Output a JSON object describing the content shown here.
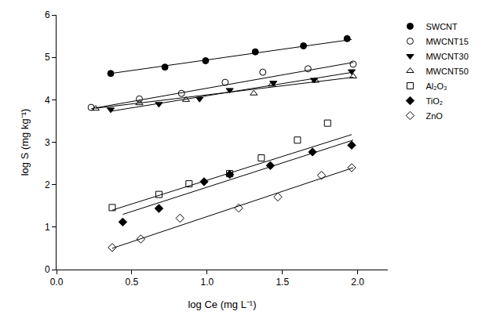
{
  "chart_data": {
    "type": "scatter",
    "xlabel": "log Ce (mg L⁻¹)",
    "ylabel": "log S (mg kg⁻¹)",
    "xlim": [
      0,
      2.2
    ],
    "ylim": [
      0,
      6
    ],
    "xticks": [
      {
        "value": 0,
        "label": "0.0"
      },
      {
        "value": 0.5,
        "label": "0.5"
      },
      {
        "value": 1,
        "label": "1.0"
      },
      {
        "value": 1.5,
        "label": "1.5"
      },
      {
        "value": 2,
        "label": "2.0"
      }
    ],
    "yticks": [
      0,
      1,
      2,
      3,
      4,
      5,
      6
    ],
    "grid": false,
    "legend": "right",
    "series": [
      {
        "name": "SWCNT",
        "color": "#000000",
        "marker": "circle",
        "x": [
          0.36,
          0.72,
          0.99,
          1.32,
          1.64,
          1.93
        ],
        "values": [
          4.62,
          4.77,
          4.92,
          5.13,
          5.27,
          5.44
        ],
        "trend": {
          "x": [
            0.36,
            1.96
          ],
          "values": [
            4.62,
            5.42
          ]
        }
      },
      {
        "name": "MWCNT15",
        "color": "#000000",
        "marker": "circle-open",
        "x": [
          0.23,
          0.55,
          0.83,
          1.12,
          1.37,
          1.67,
          1.97
        ],
        "values": [
          3.82,
          4.02,
          4.15,
          4.41,
          4.65,
          4.73,
          4.84
        ],
        "trend": {
          "x": [
            0.23,
            1.97
          ],
          "values": [
            3.79,
            4.88
          ]
        }
      },
      {
        "name": "MWCNT30",
        "color": "#000000",
        "marker": "triangle-down",
        "x": [
          0.36,
          0.68,
          0.95,
          1.15,
          1.44,
          1.71,
          1.96
        ],
        "values": [
          3.77,
          3.9,
          4.02,
          4.23,
          4.4,
          4.47,
          4.67
        ],
        "trend": {
          "x": [
            0.36,
            1.97
          ],
          "values": [
            3.73,
            4.65
          ]
        }
      },
      {
        "name": "MWCNT50",
        "color": "#000000",
        "marker": "triangle-up-open",
        "x": [
          0.26,
          0.55,
          0.86,
          1.31,
          1.43,
          1.72,
          1.97
        ],
        "values": [
          3.79,
          3.92,
          4.0,
          4.15,
          4.36,
          4.45,
          4.55
        ],
        "trend": {
          "x": [
            0.26,
            1.97
          ],
          "values": [
            3.8,
            4.53
          ]
        }
      },
      {
        "name": "Al₂O₃",
        "color": "#000000",
        "marker": "square-open",
        "x": [
          0.37,
          0.68,
          0.88,
          1.15,
          1.36,
          1.6,
          1.8
        ],
        "values": [
          1.46,
          1.77,
          2.02,
          2.26,
          2.63,
          3.05,
          3.45
        ],
        "trend": {
          "x": [
            0.37,
            1.96
          ],
          "values": [
            1.4,
            3.18
          ]
        }
      },
      {
        "name": "TiO₂",
        "color": "#000000",
        "marker": "diamond",
        "x": [
          0.44,
          0.68,
          0.98,
          1.15,
          1.42,
          1.7,
          1.96
        ],
        "values": [
          1.12,
          1.44,
          2.07,
          2.24,
          2.45,
          2.77,
          2.93
        ],
        "trend": {
          "x": [
            0.44,
            1.97
          ],
          "values": [
            1.3,
            3.05
          ]
        }
      },
      {
        "name": "ZnO",
        "color": "#000000",
        "marker": "diamond-open",
        "x": [
          0.37,
          0.56,
          0.82,
          1.21,
          1.47,
          1.76,
          1.96
        ],
        "values": [
          0.52,
          0.72,
          1.21,
          1.45,
          1.71,
          2.22,
          2.4
        ],
        "trend": {
          "x": [
            0.37,
            1.97
          ],
          "values": [
            0.5,
            2.4
          ]
        }
      }
    ]
  }
}
